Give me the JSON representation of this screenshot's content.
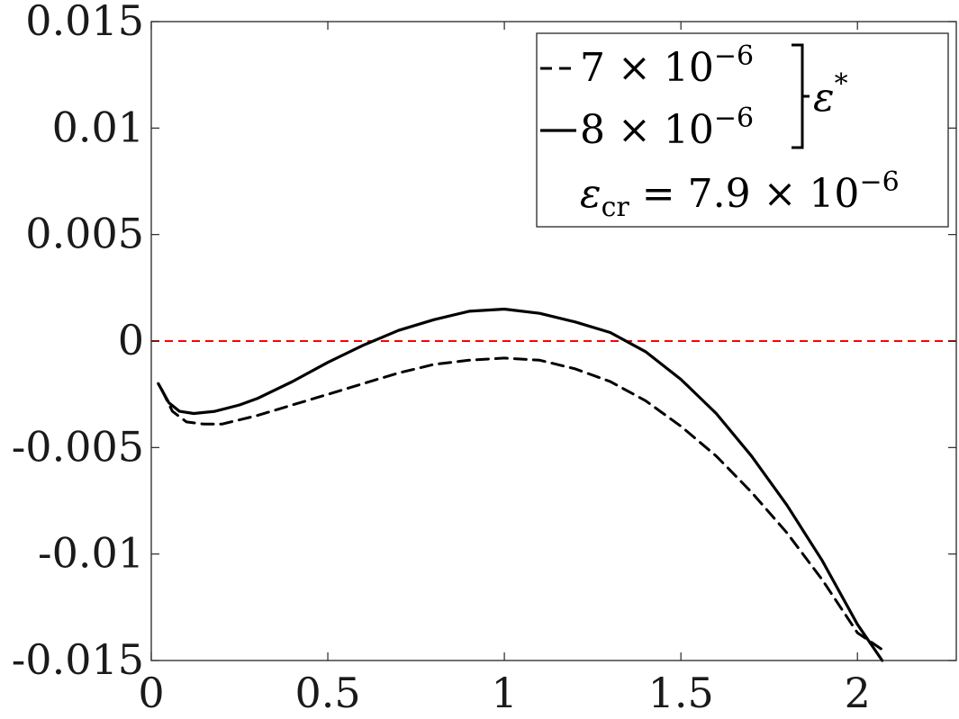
{
  "chart_data": {
    "type": "line",
    "title": "",
    "xlabel": "",
    "ylabel": "",
    "xlim": [
      0,
      2.28
    ],
    "ylim": [
      -0.015,
      0.015
    ],
    "x_ticks": [
      0,
      0.5,
      1,
      1.5,
      2
    ],
    "x_tick_labels": [
      "0",
      "0.5",
      "1",
      "1.5",
      "2"
    ],
    "y_ticks": [
      0.015,
      0.01,
      0.005,
      0,
      -0.005,
      -0.01,
      -0.015
    ],
    "y_tick_labels": [
      "0.015",
      "0.01",
      "0.005",
      "0",
      "-0.005",
      "-0.01",
      "-0.015"
    ],
    "grid": false,
    "legend": {
      "placement": "top-right",
      "entries": [
        {
          "label": "7 × 10",
          "exponent": "−6",
          "style": "dashed"
        },
        {
          "label": "8 × 10",
          "exponent": "−6",
          "style": "solid"
        }
      ],
      "group_label": "ε",
      "group_label_sup": "*",
      "note_symbol": "ε",
      "note_sub": "cr",
      "note_rest": " = 7.9 × 10",
      "note_exponent": "−6"
    },
    "reference_line": {
      "y": 0,
      "color": "#ff0000",
      "style": "dashed"
    },
    "series": [
      {
        "style": "dashed",
        "color": "#000000",
        "x": [
          0.03,
          0.06,
          0.1,
          0.15,
          0.2,
          0.3,
          0.4,
          0.5,
          0.6,
          0.7,
          0.8,
          0.9,
          1.0,
          1.1,
          1.2,
          1.3,
          1.4,
          1.5,
          1.6,
          1.7,
          1.8,
          1.9,
          2.0,
          2.08
        ],
        "y": [
          -0.0023,
          -0.0033,
          -0.0038,
          -0.0039,
          -0.0039,
          -0.0035,
          -0.003,
          -0.0025,
          -0.002,
          -0.0015,
          -0.0011,
          -0.0009,
          -0.0008,
          -0.0009,
          -0.0013,
          -0.0019,
          -0.0028,
          -0.004,
          -0.0054,
          -0.0071,
          -0.009,
          -0.0112,
          -0.0137,
          -0.0146
        ]
      },
      {
        "style": "solid",
        "color": "#000000",
        "x": [
          0.02,
          0.05,
          0.08,
          0.12,
          0.18,
          0.25,
          0.3,
          0.4,
          0.5,
          0.6,
          0.7,
          0.8,
          0.9,
          1.0,
          1.1,
          1.2,
          1.3,
          1.4,
          1.5,
          1.6,
          1.7,
          1.8,
          1.9,
          2.0,
          2.07
        ],
        "y": [
          -0.002,
          -0.0029,
          -0.0033,
          -0.0034,
          -0.0033,
          -0.003,
          -0.0027,
          -0.0019,
          -0.001,
          -0.0002,
          0.0005,
          0.001,
          0.0014,
          0.0015,
          0.0013,
          0.0009,
          0.0004,
          -0.0005,
          -0.0018,
          -0.0034,
          -0.0054,
          -0.0077,
          -0.0103,
          -0.0133,
          -0.015
        ]
      }
    ]
  }
}
